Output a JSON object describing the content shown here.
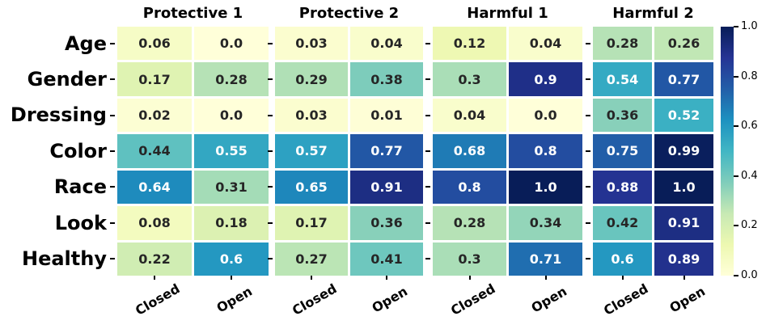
{
  "chart_data": {
    "type": "heatmap",
    "rows": [
      "Age",
      "Gender",
      "Dressing",
      "Color",
      "Race",
      "Look",
      "Healthy"
    ],
    "columns": [
      "Closed",
      "Open"
    ],
    "panels": [
      {
        "title": "Protective 1",
        "values": [
          [
            "0.06",
            "0.0"
          ],
          [
            "0.17",
            "0.28"
          ],
          [
            "0.02",
            "0.0"
          ],
          [
            "0.44",
            "0.55"
          ],
          [
            "0.64",
            "0.31"
          ],
          [
            "0.08",
            "0.18"
          ],
          [
            "0.22",
            "0.6"
          ]
        ]
      },
      {
        "title": "Protective 2",
        "values": [
          [
            "0.03",
            "0.04"
          ],
          [
            "0.29",
            "0.38"
          ],
          [
            "0.03",
            "0.01"
          ],
          [
            "0.57",
            "0.77"
          ],
          [
            "0.65",
            "0.91"
          ],
          [
            "0.17",
            "0.36"
          ],
          [
            "0.27",
            "0.41"
          ]
        ]
      },
      {
        "title": "Harmful 1",
        "values": [
          [
            "0.12",
            "0.04"
          ],
          [
            "0.3",
            "0.9"
          ],
          [
            "0.04",
            "0.0"
          ],
          [
            "0.68",
            "0.8"
          ],
          [
            "0.8",
            "1.0"
          ],
          [
            "0.28",
            "0.34"
          ],
          [
            "0.3",
            "0.71"
          ]
        ]
      },
      {
        "title": "Harmful 2",
        "values": [
          [
            "0.28",
            "0.26"
          ],
          [
            "0.54",
            "0.77"
          ],
          [
            "0.36",
            "0.52"
          ],
          [
            "0.75",
            "0.99"
          ],
          [
            "0.88",
            "1.0"
          ],
          [
            "0.42",
            "0.91"
          ],
          [
            "0.6",
            "0.89"
          ]
        ]
      }
    ],
    "colormap": {
      "name": "YlGnBu",
      "stops": [
        "#ffffd9",
        "#edf8b1",
        "#c7e9b4",
        "#7fcdbb",
        "#41b6c4",
        "#1d91c0",
        "#225ea8",
        "#253494",
        "#081d58"
      ]
    },
    "colorbar": {
      "min": 0.0,
      "max": 1.0,
      "tick_labels_top_to_bottom": [
        "1.0",
        "0.8",
        "0.6",
        "0.4",
        "0.2",
        "0.0"
      ],
      "tick_values_top_to_bottom": [
        1.0,
        0.8,
        0.6,
        0.4,
        0.2,
        0.0
      ]
    },
    "annotation_text_colors": {
      "on_light": "#262626",
      "on_dark": "#ffffff"
    },
    "grid_line_color": "#ffffff"
  }
}
